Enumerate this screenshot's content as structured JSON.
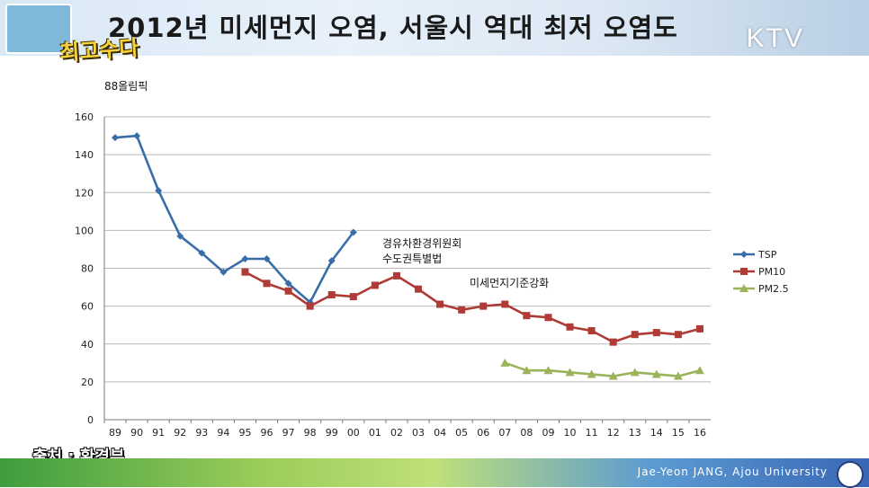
{
  "slide": {
    "title": "2012년 미세먼지 오염, 서울시 역대 최저 오염도",
    "program_logo": "최고수다",
    "broadcaster": "KTV",
    "source": "출처 : 환경부",
    "credit": "Jae-Yeon JANG,  Ajou University"
  },
  "colors": {
    "TSP": "#3a6ea8",
    "PM10": "#b03a36",
    "PM2.5": "#9bb35a",
    "grid": "#b9b9b9"
  },
  "chart_data": {
    "type": "line",
    "categories": [
      "89",
      "90",
      "91",
      "92",
      "93",
      "94",
      "95",
      "96",
      "97",
      "98",
      "99",
      "00",
      "01",
      "02",
      "03",
      "04",
      "05",
      "06",
      "07",
      "08",
      "09",
      "10",
      "11",
      "12",
      "13",
      "14",
      "15",
      "16"
    ],
    "ylim": [
      0,
      160
    ],
    "yticks": [
      0,
      20,
      40,
      60,
      80,
      100,
      120,
      140,
      160
    ],
    "grid": true,
    "legend": "right",
    "series": [
      {
        "name": "TSP",
        "marker": "diamond",
        "values": [
          149,
          150,
          121,
          97,
          88,
          78,
          85,
          85,
          72,
          62,
          84,
          99,
          null,
          null,
          null,
          null,
          null,
          null,
          null,
          null,
          null,
          null,
          null,
          null,
          null,
          null,
          null,
          null
        ]
      },
      {
        "name": "PM10",
        "marker": "square",
        "values": [
          null,
          null,
          null,
          null,
          null,
          null,
          78,
          72,
          68,
          60,
          66,
          65,
          71,
          76,
          69,
          61,
          58,
          60,
          61,
          55,
          54,
          49,
          47,
          41,
          45,
          46,
          45,
          48
        ]
      },
      {
        "name": "PM2.5",
        "marker": "triangle",
        "values": [
          null,
          null,
          null,
          null,
          null,
          null,
          null,
          null,
          null,
          null,
          null,
          null,
          null,
          null,
          null,
          null,
          null,
          null,
          30,
          26,
          26,
          25,
          24,
          23,
          25,
          24,
          23,
          26
        ]
      }
    ],
    "annotations": [
      {
        "text": "88올림픽",
        "at": "top-left"
      },
      {
        "text": "경유차환경위원회",
        "near": "01"
      },
      {
        "text": "수도권특별법",
        "near": "01"
      },
      {
        "text": "미세먼지기준강화",
        "near": "05"
      }
    ]
  }
}
